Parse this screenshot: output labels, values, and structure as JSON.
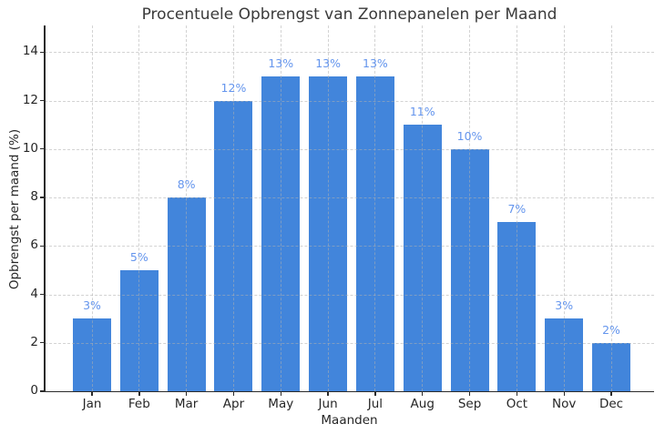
{
  "chart_data": {
    "type": "bar",
    "title": "Procentuele Opbrengst van Zonnepanelen per Maand",
    "xlabel": "Maanden",
    "ylabel": "Opbrengst per maand (%)",
    "categories": [
      "Jan",
      "Feb",
      "Mar",
      "Apr",
      "May",
      "Jun",
      "Jul",
      "Aug",
      "Sep",
      "Oct",
      "Nov",
      "Dec"
    ],
    "values": [
      3,
      5,
      8,
      12,
      13,
      13,
      13,
      11,
      10,
      7,
      3,
      2
    ],
    "bar_labels": [
      "3%",
      "5%",
      "8%",
      "12%",
      "13%",
      "13%",
      "13%",
      "11%",
      "10%",
      "7%",
      "3%",
      "2%"
    ],
    "yticks": [
      0,
      2,
      4,
      6,
      8,
      10,
      12,
      14
    ],
    "ylim": [
      0,
      15.1
    ],
    "grid": true,
    "legend_position": "none",
    "colors": {
      "bar": "#4285db",
      "bar_label": "#6495ed",
      "axis_text": "#262626",
      "title_text": "#3a3a3a",
      "grid": "#afafaf"
    }
  }
}
